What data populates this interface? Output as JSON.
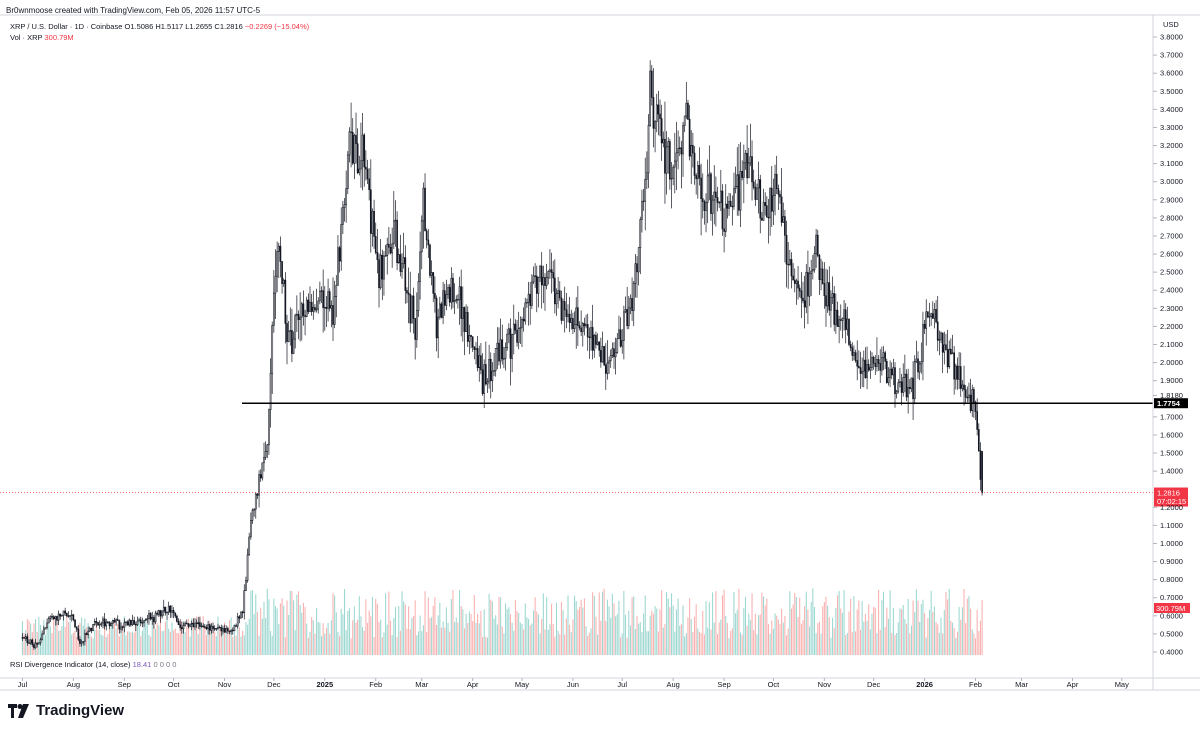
{
  "header": {
    "text": "Br0wnmoose created with TradingView.com, Feb 05, 2026 11:57 UTC-5"
  },
  "legend": {
    "symbol": "XRP / U.S. Dollar · 1D · Coinbase",
    "ohlc": "O1.5086 H1.5117 L1.2655 C1.2816",
    "change": "−0.2269 (−15.04%)",
    "vol_label": "Vol · XRP",
    "vol_value": "300.79M"
  },
  "rsi": {
    "label": "RSI Divergence Indicator (14, close)",
    "value": "18.41",
    "zeros": "0 0 0 0"
  },
  "brand": {
    "name": "TradingView"
  },
  "colors": {
    "up": "#26a69a",
    "down": "#ef5350",
    "candle": "#131722",
    "last_price": "#f23645",
    "line": "#000000"
  },
  "chart_data": {
    "type": "candlestick",
    "currency": "USD",
    "ylim": [
      0.35,
      3.85
    ],
    "y_ticks": [
      "3.8000",
      "3.7000",
      "3.6000",
      "3.5000",
      "3.4000",
      "3.3000",
      "3.2000",
      "3.1000",
      "3.0000",
      "2.9000",
      "2.8000",
      "2.7000",
      "2.6000",
      "2.5000",
      "2.4000",
      "2.3000",
      "2.2000",
      "2.1000",
      "2.0000",
      "1.9000",
      "1.8180",
      "1.7000",
      "1.6000",
      "1.5000",
      "1.4000",
      "1.2000",
      "1.1000",
      "1.0000",
      "0.9000",
      "0.8000",
      "0.7000",
      "0.6000",
      "0.5000",
      "0.4000"
    ],
    "x_ticks": [
      "Jul",
      "Aug",
      "Sep",
      "Oct",
      "Nov",
      "Dec",
      "2025",
      "Feb",
      "Mar",
      "Apr",
      "May",
      "Jun",
      "Jul",
      "Aug",
      "Sep",
      "Oct",
      "Nov",
      "Dec",
      "2026",
      "Feb",
      "Mar",
      "Apr",
      "May"
    ],
    "horizontal_line": {
      "price": 1.7754,
      "label": "1.7754"
    },
    "last_price": {
      "price": 1.2816,
      "label": "1.2816",
      "countdown": "07:02:15"
    },
    "volume_label": "300.79M",
    "price_path": [
      [
        "2024-07-01",
        0.48
      ],
      [
        "2024-07-10",
        0.43
      ],
      [
        "2024-07-17",
        0.58
      ],
      [
        "2024-07-31",
        0.62
      ],
      [
        "2024-08-05",
        0.45
      ],
      [
        "2024-08-15",
        0.57
      ],
      [
        "2024-09-01",
        0.55
      ],
      [
        "2024-09-15",
        0.58
      ],
      [
        "2024-09-30",
        0.64
      ],
      [
        "2024-10-05",
        0.54
      ],
      [
        "2024-10-20",
        0.55
      ],
      [
        "2024-11-05",
        0.51
      ],
      [
        "2024-11-12",
        0.62
      ],
      [
        "2024-11-17",
        1.1
      ],
      [
        "2024-11-23",
        1.4
      ],
      [
        "2024-11-27",
        1.6
      ],
      [
        "2024-12-02",
        2.5
      ],
      [
        "2024-12-04",
        2.7
      ],
      [
        "2024-12-10",
        2.1
      ],
      [
        "2024-12-20",
        2.3
      ],
      [
        "2025-01-01",
        2.4
      ],
      [
        "2025-01-06",
        2.3
      ],
      [
        "2025-01-16",
        3.2
      ],
      [
        "2025-01-25",
        3.1
      ],
      [
        "2025-02-03",
        2.5
      ],
      [
        "2025-02-12",
        2.7
      ],
      [
        "2025-02-25",
        2.2
      ],
      [
        "2025-03-02",
        2.9
      ],
      [
        "2025-03-10",
        2.2
      ],
      [
        "2025-03-20",
        2.45
      ],
      [
        "2025-04-07",
        1.9
      ],
      [
        "2025-04-20",
        2.1
      ],
      [
        "2025-05-01",
        2.2
      ],
      [
        "2025-05-12",
        2.55
      ],
      [
        "2025-05-25",
        2.3
      ],
      [
        "2025-06-10",
        2.2
      ],
      [
        "2025-06-22",
        2.0
      ],
      [
        "2025-07-01",
        2.2
      ],
      [
        "2025-07-10",
        2.5
      ],
      [
        "2025-07-14",
        2.9
      ],
      [
        "2025-07-18",
        3.5
      ],
      [
        "2025-07-25",
        3.2
      ],
      [
        "2025-08-01",
        3.0
      ],
      [
        "2025-08-08",
        3.3
      ],
      [
        "2025-08-20",
        2.95
      ],
      [
        "2025-09-01",
        2.8
      ],
      [
        "2025-09-15",
        3.05
      ],
      [
        "2025-09-28",
        2.8
      ],
      [
        "2025-10-05",
        3.0
      ],
      [
        "2025-10-10",
        2.5
      ],
      [
        "2025-10-20",
        2.4
      ],
      [
        "2025-10-27",
        2.6
      ],
      [
        "2025-11-05",
        2.3
      ],
      [
        "2025-11-15",
        2.2
      ],
      [
        "2025-11-22",
        1.95
      ],
      [
        "2025-12-01",
        2.05
      ],
      [
        "2025-12-15",
        1.9
      ],
      [
        "2025-12-25",
        1.88
      ],
      [
        "2026-01-05",
        2.3
      ],
      [
        "2026-01-15",
        2.05
      ],
      [
        "2026-01-25",
        1.9
      ],
      [
        "2026-01-31",
        1.75
      ],
      [
        "2026-02-03",
        1.55
      ],
      [
        "2026-02-05",
        1.28
      ]
    ]
  }
}
